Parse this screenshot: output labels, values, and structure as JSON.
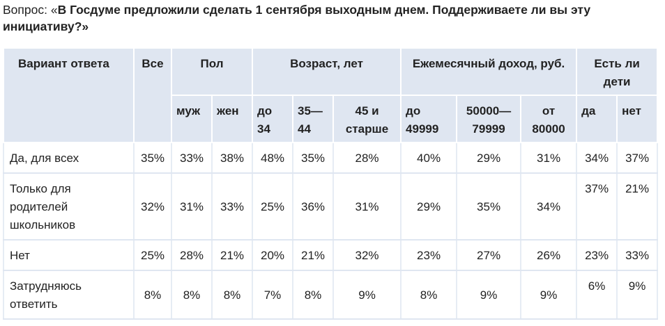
{
  "question": {
    "prefix": "Вопрос: «",
    "text": "В Госдуме предложили сделать 1 сентября выходным днем. Поддерживаете ли вы эту инициативу?»"
  },
  "header": {
    "answer_col": "Вариант ответа",
    "all_col": "Все",
    "groups": {
      "gender": "Пол",
      "age": "Возраст, лет",
      "income": "Ежемесячный доход, руб.",
      "children": "Есть ли дети"
    },
    "sub": {
      "male": "муж",
      "female": "жен",
      "age1": "до 34",
      "age2": "35— 44",
      "age3": "45 и старше",
      "inc1": "до 49999",
      "inc2": "50000— 79999",
      "inc3": "от 80000",
      "kids_yes": "да",
      "kids_no": "нет"
    }
  },
  "rows": [
    {
      "label": "Да, для всех",
      "all": "35%",
      "male": "33%",
      "female": "38%",
      "age1": "48%",
      "age2": "35%",
      "age3": "28%",
      "inc1": "40%",
      "inc2": "29%",
      "inc3": "31%",
      "kids_yes": "34%",
      "kids_no": "37%"
    },
    {
      "label": "Только для родителей школьников",
      "all": "32%",
      "male": "31%",
      "female": "33%",
      "age1": "25%",
      "age2": "36%",
      "age3": "31%",
      "inc1": "29%",
      "inc2": "35%",
      "inc3": "34%",
      "kids_yes": "37%",
      "kids_no": "21%"
    },
    {
      "label": "Нет",
      "all": "25%",
      "male": "28%",
      "female": "21%",
      "age1": "20%",
      "age2": "21%",
      "age3": "32%",
      "inc1": "23%",
      "inc2": "27%",
      "inc3": "26%",
      "kids_yes": "23%",
      "kids_no": "33%"
    },
    {
      "label": "Затрудняюсь ответить",
      "all": "8%",
      "male": "8%",
      "female": "8%",
      "age1": "7%",
      "age2": "8%",
      "age3": "9%",
      "inc1": "8%",
      "inc2": "9%",
      "inc3": "9%",
      "kids_yes": "6%",
      "kids_no": "9%"
    }
  ],
  "colors": {
    "header_bg": "#dfe6f1",
    "text": "#222222"
  }
}
